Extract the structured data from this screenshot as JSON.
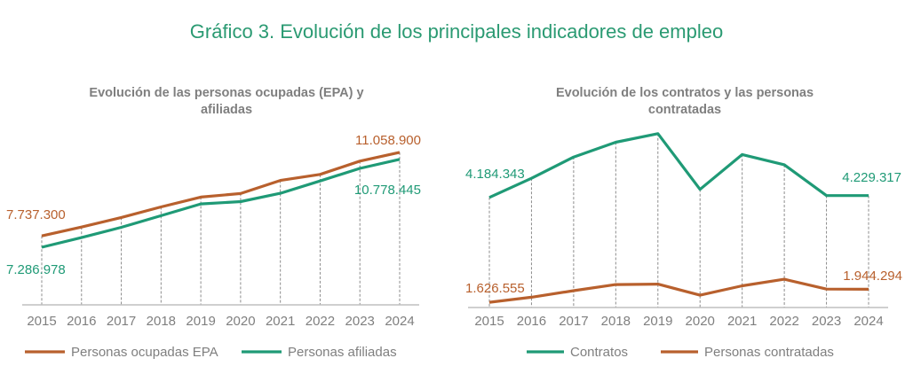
{
  "title": "Gráfico 3. Evolución de los principales indicadores de empleo",
  "colors": {
    "orange": "#b8602d",
    "green": "#1f9a76",
    "axis": "#bfbfbf",
    "text": "#7f7f7f"
  },
  "chart_data": [
    {
      "type": "line",
      "title_line1": "Evolución de las personas ocupadas (EPA) y",
      "title_line2": "afiliadas",
      "categories": [
        "2015",
        "2016",
        "2017",
        "2018",
        "2019",
        "2020",
        "2021",
        "2022",
        "2023",
        "2024"
      ],
      "ylim": [
        5000000,
        11300000
      ],
      "grid": "dashed vertical droplines",
      "legend": "bottom",
      "series": [
        {
          "name": "Personas ocupadas EPA",
          "color": "#b8602d",
          "values": [
            7737300,
            8090000,
            8470000,
            8890000,
            9280000,
            9420000,
            9940000,
            10180000,
            10710000,
            11058900
          ],
          "first_label": "7.737.300",
          "last_label": "11.058.900"
        },
        {
          "name": "Personas afiliadas",
          "color": "#1f9a76",
          "values": [
            7286978,
            7670000,
            8080000,
            8540000,
            9010000,
            9100000,
            9430000,
            9920000,
            10420000,
            10778445
          ],
          "first_label": "7.286.978",
          "last_label": "10.778.445"
        }
      ]
    },
    {
      "type": "line",
      "title_line1": "Evolución de los contratos y las personas",
      "title_line2": "contratadas",
      "categories": [
        "2015",
        "2016",
        "2017",
        "2018",
        "2019",
        "2020",
        "2021",
        "2022",
        "2023",
        "2024"
      ],
      "ylim": [
        1500000,
        5800000
      ],
      "grid": "dashed vertical droplines",
      "legend": "bottom",
      "series": [
        {
          "name": "Contratos",
          "color": "#1f9a76",
          "values": [
            4184343,
            4650000,
            5170000,
            5530000,
            5740000,
            4380000,
            5230000,
            4980000,
            4230000,
            4229317
          ],
          "first_label": "4.184.343",
          "last_label": "4.229.317"
        },
        {
          "name": "Personas contratadas",
          "color": "#b8602d",
          "values": [
            1626555,
            1750000,
            1910000,
            2060000,
            2070000,
            1800000,
            2030000,
            2190000,
            1950000,
            1944294
          ],
          "first_label": "1.626.555",
          "last_label": "1.944.294"
        }
      ]
    }
  ]
}
